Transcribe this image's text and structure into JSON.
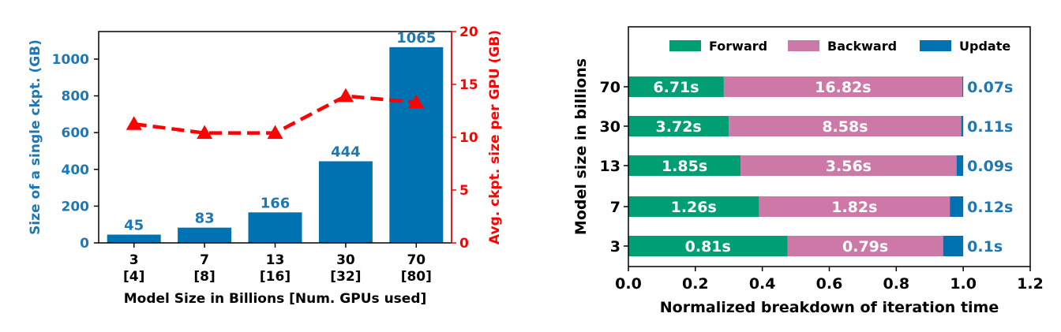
{
  "colors": {
    "bar": "#0072b2",
    "line": "#ff0000",
    "forward": "#009e73",
    "backward": "#cc79a7",
    "update": "#0072b2",
    "blue_text": "#1f77b4"
  },
  "chart_data": [
    {
      "type": "bar",
      "categories": [
        "3\n[4]",
        "7\n[8]",
        "13\n[16]",
        "30\n[32]",
        "70\n[80]"
      ],
      "category_lines": [
        [
          "3",
          "[4]"
        ],
        [
          "7",
          "[8]"
        ],
        [
          "13",
          "[16]"
        ],
        [
          "30",
          "[32]"
        ],
        [
          "70",
          "[80]"
        ]
      ],
      "xlabel": "Model Size in Billions [Num. GPUs used]",
      "ylabel": "Size of a single ckpt. (GB)",
      "y2label": "Avg. ckpt. size per GPU (GB)",
      "ylim": [
        0,
        1150
      ],
      "yticks": [
        0,
        200,
        400,
        600,
        800,
        1000
      ],
      "y2lim": [
        0,
        20
      ],
      "y2ticks": [
        0,
        5,
        10,
        15,
        20
      ],
      "series": [
        {
          "kind": "bar",
          "axis": "left",
          "values": [
            45,
            83,
            166,
            444,
            1065
          ]
        },
        {
          "kind": "line",
          "axis": "right",
          "style": "dashed",
          "marker": "triangle",
          "values": [
            11.25,
            10.4,
            10.4,
            13.9,
            13.3
          ]
        }
      ],
      "data_labels": [
        "45",
        "83",
        "166",
        "444",
        "1065"
      ],
      "grid": false
    },
    {
      "type": "bar",
      "orientation": "horizontal",
      "stacked": true,
      "categories": [
        "70",
        "30",
        "13",
        "7",
        "3"
      ],
      "xlabel": "Normalized breakdown of iteration time",
      "ylabel": "Model size in billions",
      "xlim": [
        0,
        1.2
      ],
      "xticks": [
        "0.0",
        "0.2",
        "0.4",
        "0.6",
        "0.8",
        "1.0",
        "1.2"
      ],
      "legend": {
        "position": "top",
        "entries": [
          "Forward",
          "Backward",
          "Update"
        ]
      },
      "series": [
        {
          "name": "Forward",
          "values": [
            0.285,
            0.3,
            0.335,
            0.39,
            0.475
          ],
          "labels": [
            "6.71s",
            "3.72s",
            "1.85s",
            "1.26s",
            "0.81s"
          ]
        },
        {
          "name": "Backward",
          "values": [
            0.712,
            0.694,
            0.645,
            0.57,
            0.465
          ],
          "labels": [
            "16.82s",
            "8.58s",
            "3.56s",
            "1.82s",
            "0.79s"
          ]
        },
        {
          "name": "Update",
          "values": [
            0.003,
            0.006,
            0.02,
            0.04,
            0.06
          ],
          "labels": [
            "0.07s",
            "0.11s",
            "0.09s",
            "0.12s",
            "0.1s"
          ]
        }
      ],
      "grid": false
    }
  ]
}
